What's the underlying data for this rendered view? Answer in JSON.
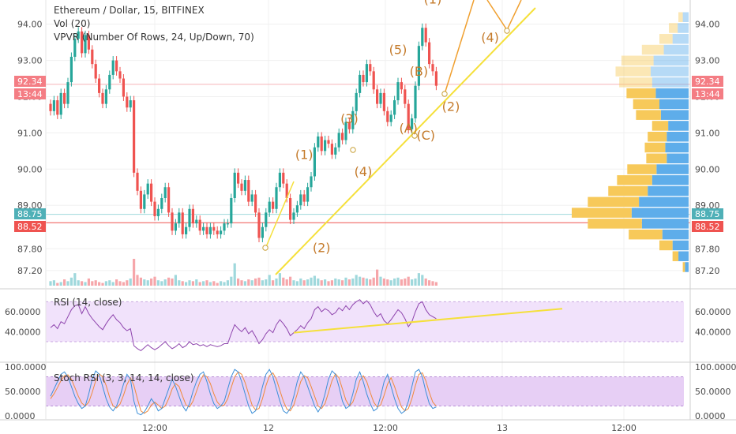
{
  "header": {
    "symbol": "Ethereum / Dollar, 15, BITFINEX",
    "vol_legend": "Vol (20)",
    "vpvr_legend": "VPVR (Number Of Rows, 24, Up/Down, 70)",
    "rsi_legend": "RSI (14, close)",
    "stoch_legend": "Stoch RSI (3, 3, 14, 14, close)"
  },
  "price_tags": {
    "current_price": "92.34",
    "countdown": "13:44",
    "level_a": "88.75",
    "level_b": "88.52"
  },
  "colors": {
    "up": "#26a69a",
    "down": "#ef5350",
    "wave_line": "#f5e03a",
    "wave_label": "#c47a2a",
    "vpvr_up": "#5eadea",
    "vpvr_down": "#f7c95a",
    "rsi_band": "#f1e2fb",
    "rsi_line": "#8e44ad",
    "stoch_band": "#e7cff5",
    "stoch_k": "#3c8fd8",
    "stoch_d": "#f08a3c",
    "price_tag_red": "#ef5350",
    "price_tag_teal": "#4fb0b7",
    "price_tag_pink": "#f47d84"
  },
  "chart_data": [
    {
      "type": "candlestick",
      "name": "price",
      "title": "Ethereum / Dollar, 15, BITFINEX",
      "x_ticks": [
        "12:00",
        "12",
        "12:00",
        "13",
        "12:00"
      ],
      "y_ticks": [
        "94.00",
        "93.00",
        "92.00",
        "91.00",
        "90.00",
        "89.00",
        "87.80",
        "87.20"
      ],
      "ylim": [
        87.0,
        94.45
      ],
      "closes": [
        91.6,
        91.9,
        91.5,
        92.1,
        91.8,
        92.4,
        93.1,
        93.6,
        93.8,
        93.2,
        93.7,
        93.3,
        92.9,
        92.5,
        92.1,
        91.8,
        92.2,
        92.6,
        93.0,
        92.7,
        92.5,
        92.0,
        91.7,
        91.9,
        89.9,
        89.4,
        88.9,
        89.3,
        89.6,
        89.1,
        88.7,
        88.9,
        89.2,
        89.5,
        88.8,
        88.3,
        88.5,
        88.8,
        88.2,
        88.4,
        88.9,
        88.5,
        88.6,
        88.3,
        88.4,
        88.2,
        88.4,
        88.3,
        88.2,
        88.3,
        88.5,
        88.5,
        89.2,
        89.9,
        89.6,
        89.4,
        89.7,
        89.1,
        89.3,
        88.8,
        88.1,
        88.4,
        88.8,
        89.1,
        88.9,
        89.5,
        89.9,
        89.6,
        89.2,
        88.6,
        88.8,
        89.0,
        89.3,
        89.1,
        89.5,
        89.8,
        90.6,
        90.9,
        90.5,
        90.8,
        90.7,
        90.4,
        90.6,
        91.0,
        90.8,
        91.3,
        91.1,
        91.6,
        92.1,
        92.6,
        92.4,
        92.9,
        92.7,
        92.2,
        91.8,
        92.1,
        91.6,
        91.3,
        91.5,
        91.9,
        92.4,
        92.2,
        91.8,
        91.1,
        91.4,
        92.3,
        93.4,
        93.9,
        93.5,
        92.9,
        92.7,
        92.3
      ],
      "volume": [
        5,
        6,
        3,
        4,
        7,
        5,
        9,
        14,
        6,
        5,
        4,
        8,
        5,
        6,
        4,
        3,
        5,
        6,
        4,
        7,
        5,
        4,
        6,
        8,
        30,
        12,
        9,
        7,
        6,
        8,
        10,
        6,
        5,
        7,
        9,
        8,
        12,
        6,
        5,
        4,
        6,
        5,
        7,
        4,
        5,
        6,
        4,
        5,
        3,
        5,
        4,
        6,
        10,
        25,
        8,
        6,
        5,
        7,
        6,
        8,
        9,
        6,
        7,
        12,
        6,
        8,
        14,
        9,
        7,
        10,
        6,
        5,
        8,
        6,
        7,
        9,
        11,
        8,
        6,
        7,
        5,
        6,
        8,
        7,
        6,
        9,
        7,
        8,
        12,
        10,
        9,
        8,
        7,
        9,
        18,
        10,
        8,
        7,
        6,
        8,
        9,
        7,
        8,
        10,
        7,
        8,
        14,
        12,
        8,
        6,
        5,
        4
      ],
      "horizontal_lines": [
        92.34,
        88.75,
        88.52
      ]
    },
    {
      "type": "horizontal_bar",
      "name": "vpvr",
      "rows": [
        {
          "price": 94.2,
          "up": 8,
          "down": 6
        },
        {
          "price": 93.9,
          "up": 15,
          "down": 12
        },
        {
          "price": 93.6,
          "up": 22,
          "down": 18
        },
        {
          "price": 93.3,
          "up": 34,
          "down": 30
        },
        {
          "price": 93.0,
          "up": 48,
          "down": 44
        },
        {
          "price": 92.7,
          "up": 52,
          "down": 48
        },
        {
          "price": 92.4,
          "up": 50,
          "down": 45
        },
        {
          "price": 92.1,
          "up": 45,
          "down": 40
        },
        {
          "price": 91.8,
          "up": 40,
          "down": 36
        },
        {
          "price": 91.5,
          "up": 38,
          "down": 34
        },
        {
          "price": 91.2,
          "up": 28,
          "down": 22
        },
        {
          "price": 90.9,
          "up": 30,
          "down": 26
        },
        {
          "price": 90.6,
          "up": 32,
          "down": 28
        },
        {
          "price": 90.3,
          "up": 30,
          "down": 28
        },
        {
          "price": 90.0,
          "up": 44,
          "down": 40
        },
        {
          "price": 89.7,
          "up": 50,
          "down": 48
        },
        {
          "price": 89.4,
          "up": 56,
          "down": 54
        },
        {
          "price": 89.1,
          "up": 68,
          "down": 70
        },
        {
          "price": 88.8,
          "up": 78,
          "down": 82
        },
        {
          "price": 88.5,
          "up": 64,
          "down": 74
        },
        {
          "price": 88.2,
          "up": 36,
          "down": 46
        },
        {
          "price": 87.9,
          "up": 22,
          "down": 18
        },
        {
          "price": 87.6,
          "up": 14,
          "down": 8
        },
        {
          "price": 87.3,
          "up": 5,
          "down": 3
        }
      ]
    },
    {
      "type": "line",
      "name": "rsi",
      "title": "RSI (14, close)",
      "y_ticks": [
        "60.0000",
        "40.0000"
      ],
      "ylim": [
        15,
        75
      ],
      "band": [
        30,
        70
      ],
      "values": [
        44,
        47,
        43,
        50,
        48,
        55,
        62,
        66,
        67,
        58,
        65,
        58,
        53,
        49,
        45,
        42,
        48,
        53,
        57,
        52,
        49,
        44,
        41,
        43,
        26,
        23,
        21,
        24,
        27,
        24,
        22,
        24,
        27,
        30,
        26,
        23,
        25,
        28,
        24,
        26,
        30,
        27,
        28,
        26,
        27,
        25,
        27,
        26,
        25,
        26,
        28,
        28,
        38,
        47,
        43,
        40,
        44,
        38,
        41,
        35,
        28,
        32,
        38,
        42,
        39,
        47,
        52,
        48,
        43,
        36,
        39,
        42,
        46,
        43,
        49,
        53,
        62,
        65,
        60,
        63,
        61,
        57,
        59,
        64,
        61,
        66,
        62,
        67,
        70,
        72,
        68,
        71,
        67,
        60,
        55,
        58,
        51,
        48,
        52,
        57,
        62,
        59,
        53,
        45,
        50,
        60,
        68,
        70,
        62,
        57,
        55,
        53
      ],
      "trendline": [
        [
          1.0,
          39.0
        ],
        [
          1.5,
          63.0
        ]
      ]
    },
    {
      "type": "line",
      "name": "stoch_rsi",
      "title": "Stoch RSI (3, 3, 14, 14, close)",
      "y_ticks": [
        "100.0000",
        "50.0000",
        "0.0000"
      ],
      "ylim": [
        -5,
        105
      ],
      "band": [
        20,
        80
      ],
      "k": [
        40,
        55,
        70,
        85,
        90,
        80,
        60,
        40,
        25,
        15,
        20,
        45,
        75,
        92,
        85,
        60,
        35,
        18,
        10,
        20,
        40,
        65,
        85,
        75,
        30,
        5,
        2,
        8,
        20,
        35,
        25,
        10,
        15,
        35,
        55,
        75,
        60,
        40,
        20,
        10,
        25,
        50,
        70,
        85,
        90,
        70,
        45,
        25,
        15,
        20,
        30,
        55,
        80,
        95,
        90,
        70,
        45,
        20,
        5,
        10,
        30,
        60,
        85,
        95,
        80,
        55,
        30,
        10,
        5,
        15,
        40,
        70,
        90,
        80,
        60,
        40,
        20,
        8,
        20,
        45,
        75,
        92,
        85,
        60,
        30,
        15,
        20,
        45,
        75,
        90,
        70,
        45,
        25,
        10,
        15,
        40,
        70,
        85,
        60,
        35,
        15,
        5,
        10,
        30,
        60,
        90,
        95,
        80,
        50,
        25,
        15,
        18
      ],
      "d": [
        35,
        45,
        58,
        72,
        82,
        84,
        75,
        58,
        40,
        26,
        20,
        28,
        48,
        72,
        86,
        80,
        62,
        38,
        20,
        16,
        24,
        42,
        64,
        78,
        62,
        35,
        10,
        5,
        10,
        22,
        28,
        22,
        15,
        20,
        35,
        55,
        66,
        60,
        40,
        22,
        18,
        30,
        50,
        70,
        84,
        80,
        66,
        45,
        28,
        20,
        22,
        35,
        58,
        80,
        90,
        85,
        68,
        45,
        22,
        12,
        15,
        35,
        62,
        82,
        88,
        75,
        52,
        30,
        14,
        10,
        22,
        45,
        70,
        82,
        78,
        60,
        40,
        20,
        15,
        25,
        48,
        72,
        86,
        78,
        55,
        32,
        20,
        28,
        48,
        72,
        82,
        70,
        48,
        28,
        18,
        22,
        42,
        65,
        78,
        60,
        38,
        18,
        10,
        15,
        35,
        62,
        85,
        88,
        72,
        48,
        28,
        20
      ]
    }
  ],
  "annotations": {
    "trendline_main": [
      [
        87.8,
        0
      ],
      [
        94.3,
        1
      ]
    ],
    "wave_labels": [
      {
        "text": "(1)",
        "bar": 73,
        "price": 90.1,
        "below": false
      },
      {
        "text": "(2)",
        "bar": 78,
        "price": 88.1,
        "below": true
      },
      {
        "text": "(3)",
        "bar": 86,
        "price": 91.1,
        "below": false
      },
      {
        "text": "(4)",
        "bar": 90,
        "price": 90.2,
        "below": true
      },
      {
        "text": "(5)",
        "bar": 100,
        "price": 93.0,
        "below": false
      },
      {
        "text": "(A)",
        "bar": 103,
        "price": 91.4,
        "below": true
      },
      {
        "text": "(B)",
        "bar": 106,
        "price": 92.4,
        "below": false
      },
      {
        "text": "(C)",
        "bar": 108,
        "price": 91.2,
        "below": true
      },
      {
        "text": "(1)",
        "bar": 110,
        "price": 94.4,
        "below": false
      },
      {
        "text": "(2)",
        "bar": 114,
        "price": 92.0,
        "below": true
      },
      {
        "text": "(4)",
        "bar": 122,
        "price": 93.9,
        "below": true
      }
    ]
  }
}
